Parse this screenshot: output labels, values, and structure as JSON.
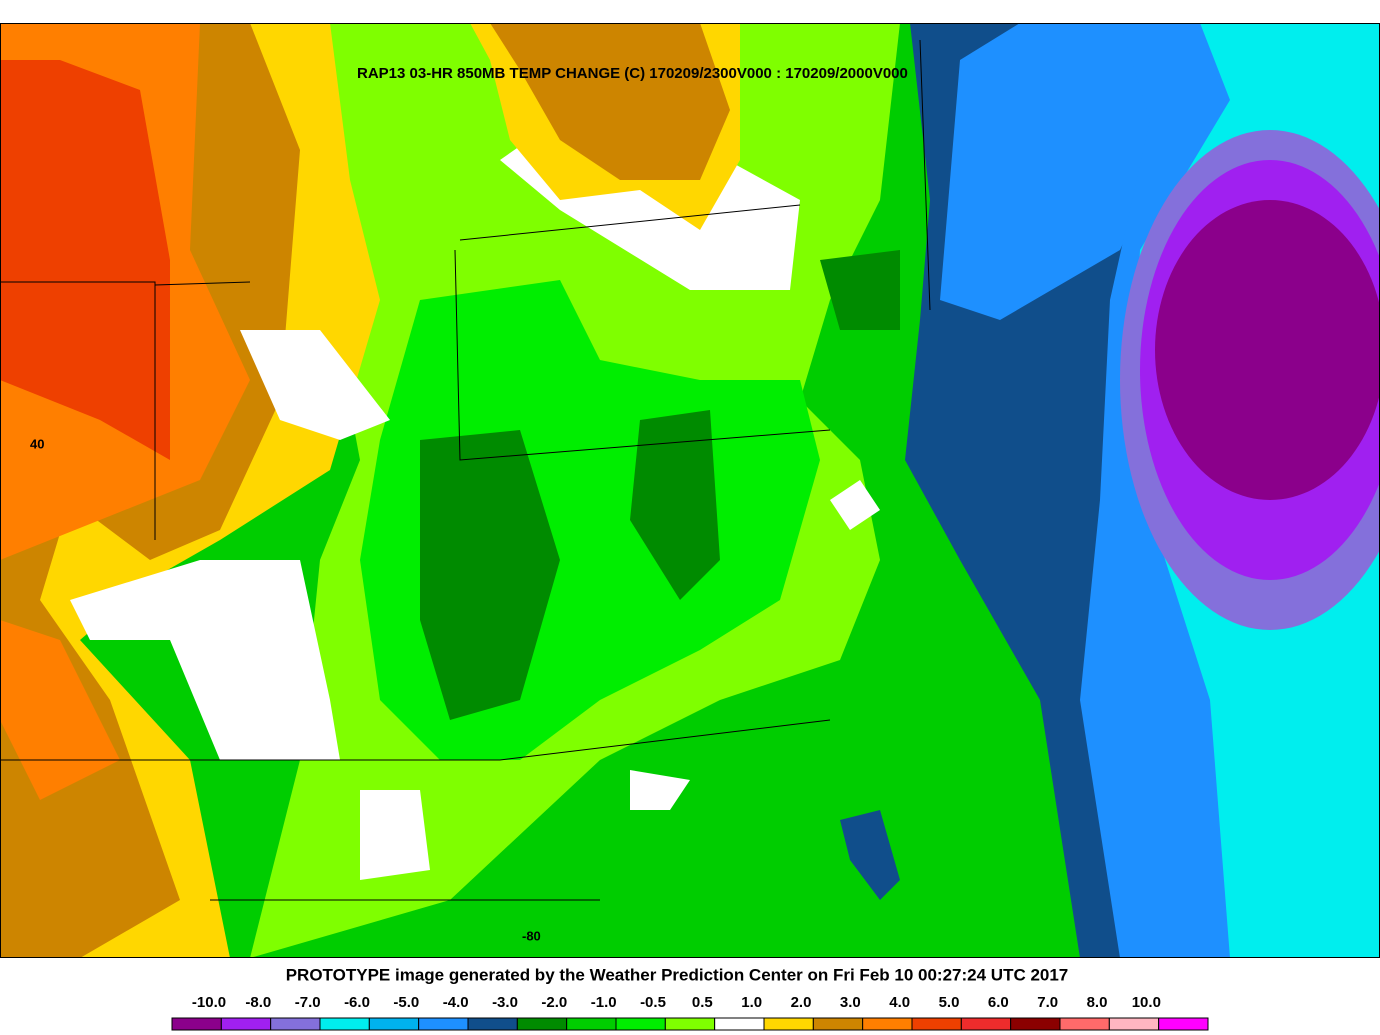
{
  "header": {
    "title": "RAP13 03-HR 850MB TEMP CHANGE (C) 170209/2300V000 : 170209/2000V000"
  },
  "map": {
    "labels": [
      "40",
      "-80"
    ]
  },
  "footer": {
    "text": "PROTOTYPE image generated by the Weather Prediction Center on Fri Feb 10 00:27:24 UTC 2017"
  },
  "colorbar": {
    "labels": [
      "-10.0",
      "-8.0",
      "-7.0",
      "-6.0",
      "-5.0",
      "-4.0",
      "-3.0",
      "-2.0",
      "-1.0",
      "-0.5",
      "0.5",
      "1.0",
      "2.0",
      "3.0",
      "4.0",
      "5.0",
      "6.0",
      "7.0",
      "8.0",
      "10.0"
    ],
    "colors": [
      "#8b008b",
      "#a020f0",
      "#8470db",
      "#00eeee",
      "#00b2ee",
      "#1e90ff",
      "#104e8b",
      "#008b00",
      "#00cd00",
      "#00ee00",
      "#7fff00",
      "#ffffff",
      "#ffd700",
      "#cd8500",
      "#ff7f00",
      "#ee4000",
      "#ee2c2c",
      "#8b0000",
      "#ff6a6a",
      "#ffb6c1",
      "#ff00ff"
    ]
  }
}
